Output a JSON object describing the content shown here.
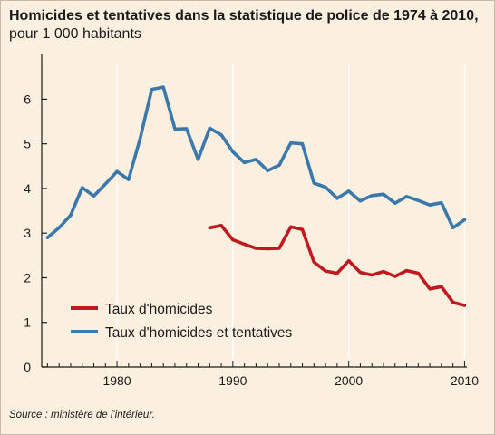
{
  "title": {
    "bold": "Homicides et tentatives dans la statistique de police de 1974 à 2010,",
    "rest": " pour 1 000 habitants"
  },
  "source": "Source : ministère de l'intérieur.",
  "colors": {
    "background": "#fbf0e0",
    "homicides": "#c01920",
    "homicides_tentatives": "#3b78ab",
    "axis": "#1a1a1a",
    "grid": "#ffffff"
  },
  "chart_data": {
    "type": "line",
    "title": "Homicides et tentatives dans la statistique de police de 1974 à 2010, pour 1 000 habitants",
    "xlabel": "",
    "ylabel": "",
    "xlim": [
      1973.5,
      2010.2
    ],
    "ylim": [
      0,
      6.8
    ],
    "xticks": [
      1980,
      1990,
      2000,
      2010
    ],
    "yticks": [
      0,
      1,
      2,
      3,
      4,
      5,
      6
    ],
    "grid": false,
    "legend_position": "bottom-left",
    "series": [
      {
        "name": "Taux d'homicides",
        "color": "#c01920",
        "x": [
          1988,
          1989,
          1990,
          1991,
          1992,
          1993,
          1994,
          1995,
          1996,
          1997,
          1998,
          1999,
          2000,
          2001,
          2002,
          2003,
          2004,
          2005,
          2006,
          2007,
          2008,
          2009,
          2010
        ],
        "y": [
          3.12,
          3.17,
          2.85,
          2.75,
          2.66,
          2.65,
          2.66,
          3.14,
          3.08,
          2.35,
          2.15,
          2.1,
          2.38,
          2.12,
          2.06,
          2.14,
          2.03,
          2.16,
          2.1,
          1.75,
          1.8,
          1.45,
          1.38
        ]
      },
      {
        "name": "Taux d'homicides et tentatives",
        "color": "#3b78ab",
        "x": [
          1974,
          1975,
          1976,
          1977,
          1978,
          1979,
          1980,
          1981,
          1982,
          1983,
          1984,
          1985,
          1986,
          1987,
          1988,
          1989,
          1990,
          1991,
          1992,
          1993,
          1994,
          1995,
          1996,
          1997,
          1998,
          1999,
          2000,
          2001,
          2002,
          2003,
          2004,
          2005,
          2006,
          2007,
          2008,
          2009,
          2010
        ],
        "y": [
          2.9,
          3.12,
          3.4,
          4.02,
          3.83,
          4.1,
          4.38,
          4.2,
          5.12,
          6.22,
          6.27,
          5.33,
          5.34,
          4.65,
          5.35,
          5.2,
          4.82,
          4.58,
          4.65,
          4.4,
          4.52,
          5.02,
          5.0,
          4.12,
          4.03,
          3.78,
          3.94,
          3.72,
          3.84,
          3.87,
          3.67,
          3.82,
          3.73,
          3.63,
          3.68,
          3.12,
          3.3
        ]
      }
    ]
  }
}
